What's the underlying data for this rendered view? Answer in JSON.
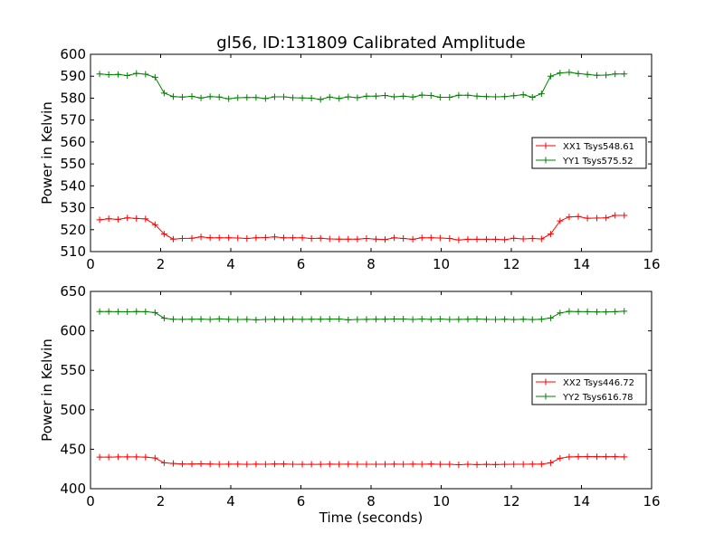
{
  "figure": {
    "title": "gl56, ID:131809 Calibrated Amplitude"
  },
  "chart_data": [
    {
      "type": "line",
      "title": "gl56, ID:131809 Calibrated Amplitude",
      "xlabel": "",
      "ylabel": "Power in Kelvin",
      "xlim": [
        0,
        16
      ],
      "ylim": [
        510,
        600
      ],
      "xticks": [
        "0",
        "2",
        "4",
        "6",
        "8",
        "10",
        "12",
        "14",
        "16"
      ],
      "yticks": [
        "510",
        "520",
        "530",
        "540",
        "550",
        "560",
        "570",
        "580",
        "590",
        "600"
      ],
      "grid": false,
      "legend_position": "center-right",
      "x": [
        0.26,
        0.52,
        0.79,
        1.05,
        1.31,
        1.57,
        1.84,
        2.1,
        2.36,
        2.62,
        2.89,
        3.15,
        3.41,
        3.67,
        3.94,
        4.2,
        4.46,
        4.72,
        4.99,
        5.25,
        5.51,
        5.77,
        6.04,
        6.3,
        6.56,
        6.82,
        7.09,
        7.35,
        7.61,
        7.87,
        8.14,
        8.4,
        8.66,
        8.92,
        9.19,
        9.45,
        9.71,
        9.97,
        10.24,
        10.5,
        10.76,
        11.02,
        11.29,
        11.55,
        11.81,
        12.07,
        12.34,
        12.6,
        12.86,
        13.12,
        13.39,
        13.65,
        13.91,
        14.17,
        14.44,
        14.7,
        14.96,
        15.22
      ],
      "series": [
        {
          "name": "XX1 Tsys548.61",
          "color": "#ff0000",
          "values": [
            524.5,
            525.0,
            524.7,
            525.4,
            525.1,
            524.9,
            522.3,
            518.0,
            515.7,
            516.0,
            516.1,
            516.7,
            516.3,
            516.3,
            516.3,
            516.2,
            516.0,
            516.3,
            516.4,
            516.7,
            516.3,
            516.3,
            516.3,
            516.0,
            516.1,
            515.8,
            515.7,
            515.7,
            515.7,
            516.0,
            515.7,
            515.5,
            516.3,
            516.0,
            515.6,
            516.3,
            516.3,
            516.2,
            516.0,
            515.3,
            515.6,
            515.6,
            515.6,
            515.6,
            515.4,
            516.1,
            515.8,
            516.0,
            515.8,
            518.0,
            524.0,
            525.8,
            526.0,
            525.2,
            525.3,
            525.4,
            526.5,
            526.5
          ]
        },
        {
          "name": "YY1 Tsys575.52",
          "color": "#008000",
          "values": [
            591.0,
            590.7,
            590.8,
            590.3,
            591.3,
            590.9,
            589.5,
            582.3,
            580.7,
            580.5,
            580.8,
            580.1,
            580.7,
            580.5,
            579.7,
            580.2,
            580.3,
            580.3,
            579.8,
            580.6,
            580.6,
            580.2,
            580.1,
            580.0,
            579.4,
            580.5,
            579.8,
            580.6,
            580.2,
            580.9,
            580.9,
            581.2,
            580.6,
            580.9,
            580.5,
            581.4,
            581.2,
            580.4,
            580.4,
            581.3,
            581.3,
            580.9,
            580.7,
            580.6,
            580.7,
            581.1,
            581.6,
            580.4,
            582.0,
            590.0,
            591.5,
            591.8,
            591.2,
            590.8,
            590.4,
            590.5,
            591.0,
            591.0
          ]
        }
      ]
    },
    {
      "type": "line",
      "title": "",
      "xlabel": "Time (seconds)",
      "ylabel": "Power in Kelvin",
      "xlim": [
        0,
        16
      ],
      "ylim": [
        400,
        650
      ],
      "xticks": [
        "0",
        "2",
        "4",
        "6",
        "8",
        "10",
        "12",
        "14",
        "16"
      ],
      "yticks": [
        "400",
        "450",
        "500",
        "550",
        "600",
        "650"
      ],
      "grid": false,
      "legend_position": "center-right",
      "x": [
        0.26,
        0.52,
        0.79,
        1.05,
        1.31,
        1.57,
        1.84,
        2.1,
        2.36,
        2.62,
        2.89,
        3.15,
        3.41,
        3.67,
        3.94,
        4.2,
        4.46,
        4.72,
        4.99,
        5.25,
        5.51,
        5.77,
        6.04,
        6.3,
        6.56,
        6.82,
        7.09,
        7.35,
        7.61,
        7.87,
        8.14,
        8.4,
        8.66,
        8.92,
        9.19,
        9.45,
        9.71,
        9.97,
        10.24,
        10.5,
        10.76,
        11.02,
        11.29,
        11.55,
        11.81,
        12.07,
        12.34,
        12.6,
        12.86,
        13.12,
        13.39,
        13.65,
        13.91,
        14.17,
        14.44,
        14.7,
        14.96,
        15.22
      ],
      "series": [
        {
          "name": "XX2 Tsys446.72",
          "color": "#ff0000",
          "values": [
            440.0,
            440.0,
            440.3,
            440.3,
            440.3,
            440.0,
            438.9,
            432.8,
            432.0,
            431.2,
            431.3,
            431.5,
            431.3,
            431.0,
            431.1,
            431.1,
            430.9,
            431.1,
            431.0,
            431.2,
            431.3,
            431.0,
            430.9,
            430.9,
            430.9,
            431.1,
            431.0,
            431.1,
            431.0,
            431.0,
            431.0,
            431.0,
            431.1,
            431.0,
            431.1,
            431.0,
            431.2,
            430.9,
            431.0,
            430.4,
            431.0,
            430.5,
            430.9,
            430.6,
            430.9,
            431.0,
            431.0,
            431.1,
            431.1,
            432.8,
            438.6,
            440.3,
            440.5,
            440.7,
            440.6,
            440.6,
            440.6,
            440.3
          ]
        },
        {
          "name": "YY2 Tsys616.78",
          "color": "#008000",
          "values": [
            624.5,
            624.5,
            624.3,
            624.2,
            624.5,
            624.3,
            623.2,
            616.0,
            614.8,
            614.6,
            614.8,
            614.9,
            614.5,
            615.2,
            614.6,
            614.5,
            614.6,
            614.0,
            614.5,
            614.7,
            614.6,
            614.7,
            614.6,
            614.8,
            614.8,
            614.9,
            615.0,
            614.0,
            614.5,
            614.6,
            614.7,
            614.7,
            615.0,
            615.0,
            614.5,
            615.0,
            614.6,
            615.0,
            614.4,
            614.6,
            614.8,
            615.0,
            614.6,
            614.5,
            614.8,
            614.3,
            614.7,
            614.3,
            614.7,
            616.3,
            622.7,
            624.7,
            624.4,
            624.3,
            624.0,
            624.0,
            624.3,
            624.9
          ]
        }
      ]
    }
  ]
}
